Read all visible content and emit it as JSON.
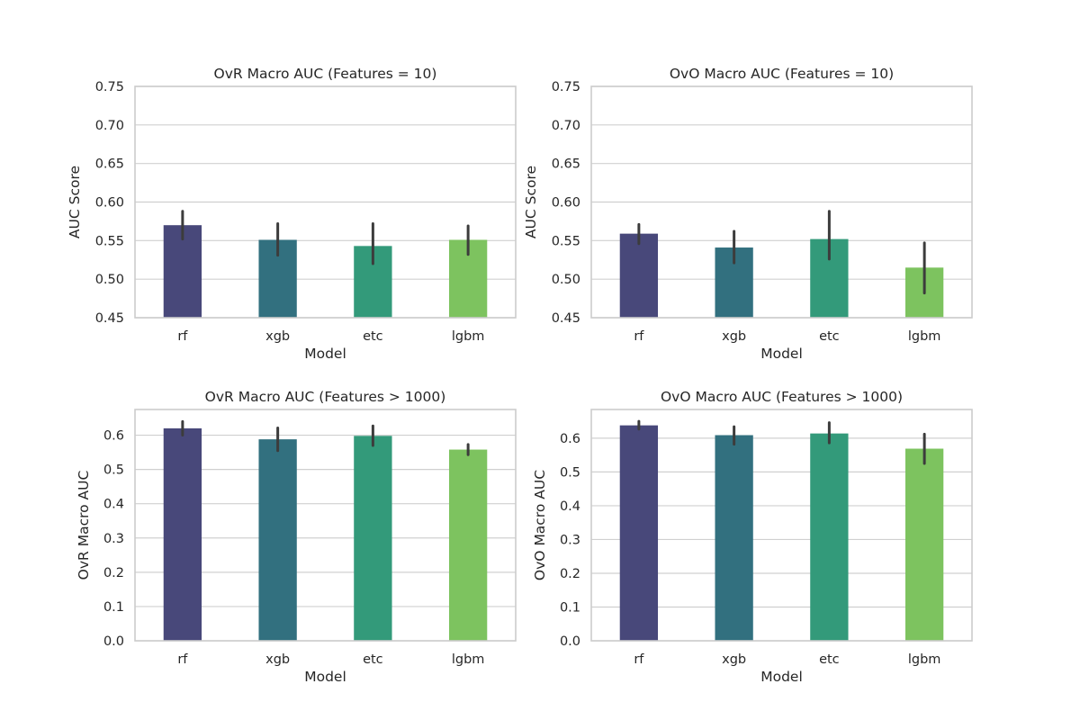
{
  "chart_data": [
    {
      "type": "bar",
      "title": "OvR Macro AUC (Features = 10)",
      "xlabel": "Model",
      "ylabel": "AUC Score",
      "categories": [
        "rf",
        "xgb",
        "etc",
        "lgbm"
      ],
      "values": [
        0.57,
        0.551,
        0.543,
        0.551
      ],
      "error_low": [
        0.552,
        0.531,
        0.52,
        0.532
      ],
      "error_high": [
        0.588,
        0.572,
        0.572,
        0.569
      ],
      "ylim": [
        0.45,
        0.75
      ],
      "yticks": [
        "0.45",
        "0.50",
        "0.55",
        "0.60",
        "0.65",
        "0.70",
        "0.75"
      ],
      "grid": true
    },
    {
      "type": "bar",
      "title": "OvO Macro AUC (Features = 10)",
      "xlabel": "Model",
      "ylabel": "AUC Score",
      "categories": [
        "rf",
        "xgb",
        "etc",
        "lgbm"
      ],
      "values": [
        0.559,
        0.541,
        0.552,
        0.515
      ],
      "error_low": [
        0.546,
        0.521,
        0.526,
        0.482
      ],
      "error_high": [
        0.571,
        0.562,
        0.588,
        0.547
      ],
      "ylim": [
        0.45,
        0.75
      ],
      "yticks": [
        "0.45",
        "0.50",
        "0.55",
        "0.60",
        "0.65",
        "0.70",
        "0.75"
      ],
      "grid": true
    },
    {
      "type": "bar",
      "title": "OvR Macro AUC (Features > 1000)",
      "xlabel": "Model",
      "ylabel": "OvR Macro AUC",
      "categories": [
        "rf",
        "xgb",
        "etc",
        "lgbm"
      ],
      "values": [
        0.62,
        0.588,
        0.598,
        0.558
      ],
      "error_low": [
        0.6,
        0.555,
        0.57,
        0.543
      ],
      "error_high": [
        0.64,
        0.621,
        0.627,
        0.573
      ],
      "ylim": [
        0.0,
        0.675
      ],
      "yticks": [
        "0.0",
        "0.1",
        "0.2",
        "0.3",
        "0.4",
        "0.5",
        "0.6"
      ],
      "grid": true
    },
    {
      "type": "bar",
      "title": "OvO Macro AUC (Features > 1000)",
      "xlabel": "Model",
      "ylabel": "OvO Macro AUC",
      "categories": [
        "rf",
        "xgb",
        "etc",
        "lgbm"
      ],
      "values": [
        0.638,
        0.609,
        0.614,
        0.569
      ],
      "error_low": [
        0.627,
        0.582,
        0.586,
        0.525
      ],
      "error_high": [
        0.65,
        0.634,
        0.646,
        0.612
      ],
      "ylim": [
        0.0,
        0.685
      ],
      "yticks": [
        "0.0",
        "0.1",
        "0.2",
        "0.3",
        "0.4",
        "0.5",
        "0.6"
      ],
      "grid": true
    }
  ],
  "colors": {
    "bars": [
      "#48487A",
      "#32707F",
      "#339A7A",
      "#7DC35F"
    ],
    "error_bar": "#3C3C3C",
    "grid": "#D0D0D0",
    "spine": "#CCCCCC"
  }
}
